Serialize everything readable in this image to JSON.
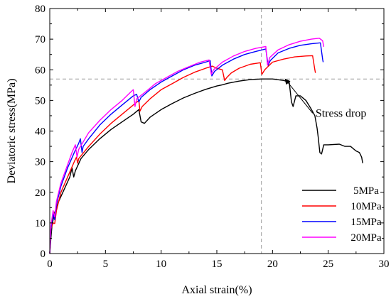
{
  "chart_data": {
    "type": "line",
    "xlabel": "Axial strain(%)",
    "ylabel": "Deviatoric stress(MPa)",
    "xlim": [
      0,
      30
    ],
    "ylim": [
      0,
      80
    ],
    "x_ticks": [
      "0",
      "5",
      "10",
      "15",
      "20",
      "25",
      "30"
    ],
    "y_ticks": [
      "0",
      "10",
      "20",
      "30",
      "40",
      "50",
      "60",
      "70",
      "80"
    ],
    "grid": false,
    "legend_position": "lower-right",
    "reference_lines": {
      "x": 19,
      "y": 57
    },
    "annotation": {
      "text": "Stress drop",
      "point": [
        20.5,
        53
      ],
      "text_at": [
        24.5,
        50
      ]
    },
    "series": [
      {
        "name": "5MPa",
        "color": "#000000",
        "points": [
          [
            0,
            0
          ],
          [
            0.1,
            5
          ],
          [
            0.2,
            9
          ],
          [
            0.4,
            13
          ],
          [
            0.8,
            17
          ],
          [
            1.3,
            21
          ],
          [
            1.8,
            25
          ],
          [
            2.0,
            28
          ],
          [
            2.15,
            25
          ],
          [
            2.3,
            27
          ],
          [
            2.8,
            31
          ],
          [
            3.5,
            34
          ],
          [
            4.5,
            37.5
          ],
          [
            5.5,
            40.5
          ],
          [
            6.5,
            43
          ],
          [
            7.5,
            45.5
          ],
          [
            8.0,
            47
          ],
          [
            8.2,
            43
          ],
          [
            8.5,
            42.5
          ],
          [
            9,
            44.5
          ],
          [
            10,
            47
          ],
          [
            11,
            49
          ],
          [
            12,
            50.8
          ],
          [
            13,
            52.3
          ],
          [
            14,
            53.6
          ],
          [
            15,
            54.7
          ],
          [
            15.5,
            55.1
          ],
          [
            16,
            55.6
          ],
          [
            17,
            56.3
          ],
          [
            18,
            56.8
          ],
          [
            19,
            57
          ],
          [
            20,
            57
          ],
          [
            21,
            56.5
          ],
          [
            21.5,
            56
          ],
          [
            21.7,
            49.5
          ],
          [
            21.85,
            48
          ],
          [
            22.1,
            51.5
          ],
          [
            22.5,
            51.5
          ],
          [
            23,
            50
          ],
          [
            23.5,
            47
          ],
          [
            23.8,
            45
          ],
          [
            24.0,
            41
          ],
          [
            24.1,
            38
          ],
          [
            24.25,
            33
          ],
          [
            24.4,
            32.5
          ],
          [
            24.6,
            35.5
          ],
          [
            25,
            35.5
          ],
          [
            26,
            35.7
          ],
          [
            26.5,
            35
          ],
          [
            27,
            35
          ],
          [
            27.5,
            33.5
          ],
          [
            27.8,
            33
          ],
          [
            28.0,
            31.5
          ],
          [
            28.1,
            29.5
          ]
        ]
      },
      {
        "name": "10MPa",
        "color": "#ff0000",
        "points": [
          [
            0,
            0
          ],
          [
            0.1,
            8
          ],
          [
            0.3,
            10
          ],
          [
            0.45,
            9.8
          ],
          [
            0.6,
            14
          ],
          [
            1.0,
            20
          ],
          [
            1.6,
            25
          ],
          [
            2.2,
            30
          ],
          [
            2.4,
            31.5
          ],
          [
            2.5,
            29.5
          ],
          [
            2.6,
            31
          ],
          [
            3.5,
            35
          ],
          [
            4.5,
            39
          ],
          [
            5.5,
            42.5
          ],
          [
            6.5,
            45.5
          ],
          [
            7.5,
            48.5
          ],
          [
            8.0,
            50
          ],
          [
            8.1,
            46.5
          ],
          [
            8.3,
            48
          ],
          [
            9,
            50.5
          ],
          [
            10,
            53.5
          ],
          [
            11,
            55.5
          ],
          [
            12,
            57.5
          ],
          [
            13,
            59.2
          ],
          [
            14,
            60.5
          ],
          [
            14.6,
            61.2
          ],
          [
            15.0,
            60.5
          ],
          [
            15.5,
            60
          ],
          [
            15.7,
            56.5
          ],
          [
            15.9,
            57.5
          ],
          [
            16.3,
            59
          ],
          [
            17,
            60.5
          ],
          [
            18,
            61.8
          ],
          [
            18.9,
            62.3
          ],
          [
            19.05,
            58.5
          ],
          [
            19.3,
            60
          ],
          [
            20,
            62.5
          ],
          [
            21,
            63.5
          ],
          [
            22,
            64.2
          ],
          [
            23,
            64.5
          ],
          [
            23.6,
            64.6
          ],
          [
            23.8,
            60
          ],
          [
            23.85,
            59
          ]
        ]
      },
      {
        "name": "15MPa",
        "color": "#0000ff",
        "points": [
          [
            0,
            0
          ],
          [
            0.1,
            8
          ],
          [
            0.3,
            13
          ],
          [
            0.45,
            11
          ],
          [
            0.6,
            16
          ],
          [
            1.0,
            22
          ],
          [
            1.6,
            28
          ],
          [
            2.2,
            33
          ],
          [
            2.6,
            36
          ],
          [
            2.75,
            37.5
          ],
          [
            2.9,
            33
          ],
          [
            3.0,
            35
          ],
          [
            3.5,
            37.5
          ],
          [
            4.5,
            42
          ],
          [
            5.5,
            45.5
          ],
          [
            6.5,
            48.5
          ],
          [
            7.5,
            51.5
          ],
          [
            7.8,
            52
          ],
          [
            8.0,
            49.5
          ],
          [
            8.2,
            51
          ],
          [
            9,
            53.5
          ],
          [
            10,
            56
          ],
          [
            11,
            58
          ],
          [
            12,
            60
          ],
          [
            13,
            61.5
          ],
          [
            14,
            62.5
          ],
          [
            14.4,
            63
          ],
          [
            14.55,
            58
          ],
          [
            14.8,
            59.5
          ],
          [
            15.5,
            61.5
          ],
          [
            16.5,
            63.5
          ],
          [
            17.5,
            65
          ],
          [
            18.5,
            66
          ],
          [
            19.4,
            66.8
          ],
          [
            19.6,
            61.5
          ],
          [
            19.8,
            63
          ],
          [
            20.5,
            65.5
          ],
          [
            21.5,
            67
          ],
          [
            22.5,
            68
          ],
          [
            23.5,
            68.5
          ],
          [
            24.3,
            68.8
          ],
          [
            24.5,
            63.5
          ],
          [
            24.55,
            62.5
          ]
        ]
      },
      {
        "name": "20MPa",
        "color": "#ff00ff",
        "points": [
          [
            0,
            0
          ],
          [
            0.1,
            9
          ],
          [
            0.3,
            14
          ],
          [
            0.45,
            12
          ],
          [
            0.6,
            17
          ],
          [
            1.0,
            23
          ],
          [
            1.6,
            29
          ],
          [
            2.0,
            33
          ],
          [
            2.3,
            35.5
          ],
          [
            2.45,
            31.5
          ],
          [
            2.6,
            34
          ],
          [
            3.5,
            39.5
          ],
          [
            4.5,
            43.5
          ],
          [
            5.5,
            47
          ],
          [
            6.5,
            50
          ],
          [
            7.2,
            52.5
          ],
          [
            7.5,
            53.5
          ],
          [
            7.65,
            48
          ],
          [
            7.8,
            50.5
          ],
          [
            8.5,
            52.5
          ],
          [
            9.5,
            55.5
          ],
          [
            10.5,
            57.5
          ],
          [
            11.5,
            59.5
          ],
          [
            12.5,
            61
          ],
          [
            13.5,
            62.5
          ],
          [
            14.3,
            63.2
          ],
          [
            14.5,
            58.5
          ],
          [
            14.7,
            60
          ],
          [
            15.5,
            62.5
          ],
          [
            16.5,
            64.5
          ],
          [
            17.5,
            66
          ],
          [
            18.5,
            67
          ],
          [
            19.4,
            67.6
          ],
          [
            19.55,
            61.5
          ],
          [
            19.75,
            64
          ],
          [
            20.5,
            66.5
          ],
          [
            21.5,
            68.2
          ],
          [
            22.5,
            69.3
          ],
          [
            23.5,
            70
          ],
          [
            24.2,
            70.3
          ],
          [
            24.5,
            69.5
          ],
          [
            24.6,
            67.5
          ]
        ]
      }
    ]
  }
}
